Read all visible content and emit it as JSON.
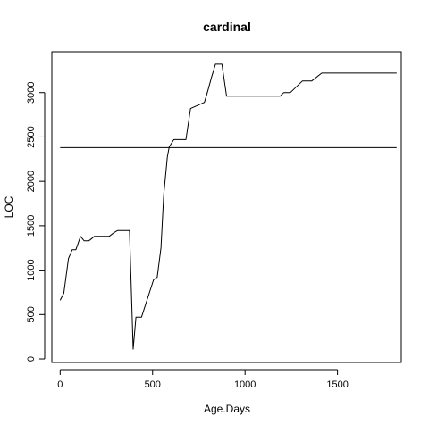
{
  "chart_data": {
    "type": "line",
    "title": "cardinal",
    "xlabel": "Age.Days",
    "ylabel": "LOC",
    "xlim": [
      -45,
      1845
    ],
    "ylim": [
      -40,
      3460
    ],
    "x_ticks": [
      0,
      500,
      1000,
      1500
    ],
    "y_ticks": [
      0,
      500,
      1000,
      1500,
      2000,
      2500,
      3000
    ],
    "grid": false,
    "legend": "none",
    "line_color": "#000000",
    "series": [
      {
        "x": [
          0,
          20,
          45,
          65,
          85,
          110,
          130,
          155,
          185,
          240,
          265,
          290,
          310,
          375,
          395,
          410,
          440,
          505,
          525,
          545,
          560,
          580,
          590,
          615,
          680,
          705,
          780,
          800,
          820,
          840,
          875,
          900,
          1000,
          1190,
          1210,
          1245,
          1310,
          1360,
          1415,
          1820
        ],
        "values": [
          660,
          740,
          1130,
          1230,
          1230,
          1380,
          1330,
          1330,
          1380,
          1380,
          1380,
          1420,
          1445,
          1445,
          110,
          470,
          470,
          890,
          920,
          1250,
          1850,
          2280,
          2390,
          2470,
          2470,
          2820,
          2890,
          3030,
          3180,
          3320,
          3320,
          2960,
          2960,
          2960,
          3000,
          3000,
          3130,
          3130,
          3220,
          3220
        ]
      },
      {
        "x": [
          0,
          1820
        ],
        "values": [
          2380,
          2380
        ]
      }
    ]
  }
}
